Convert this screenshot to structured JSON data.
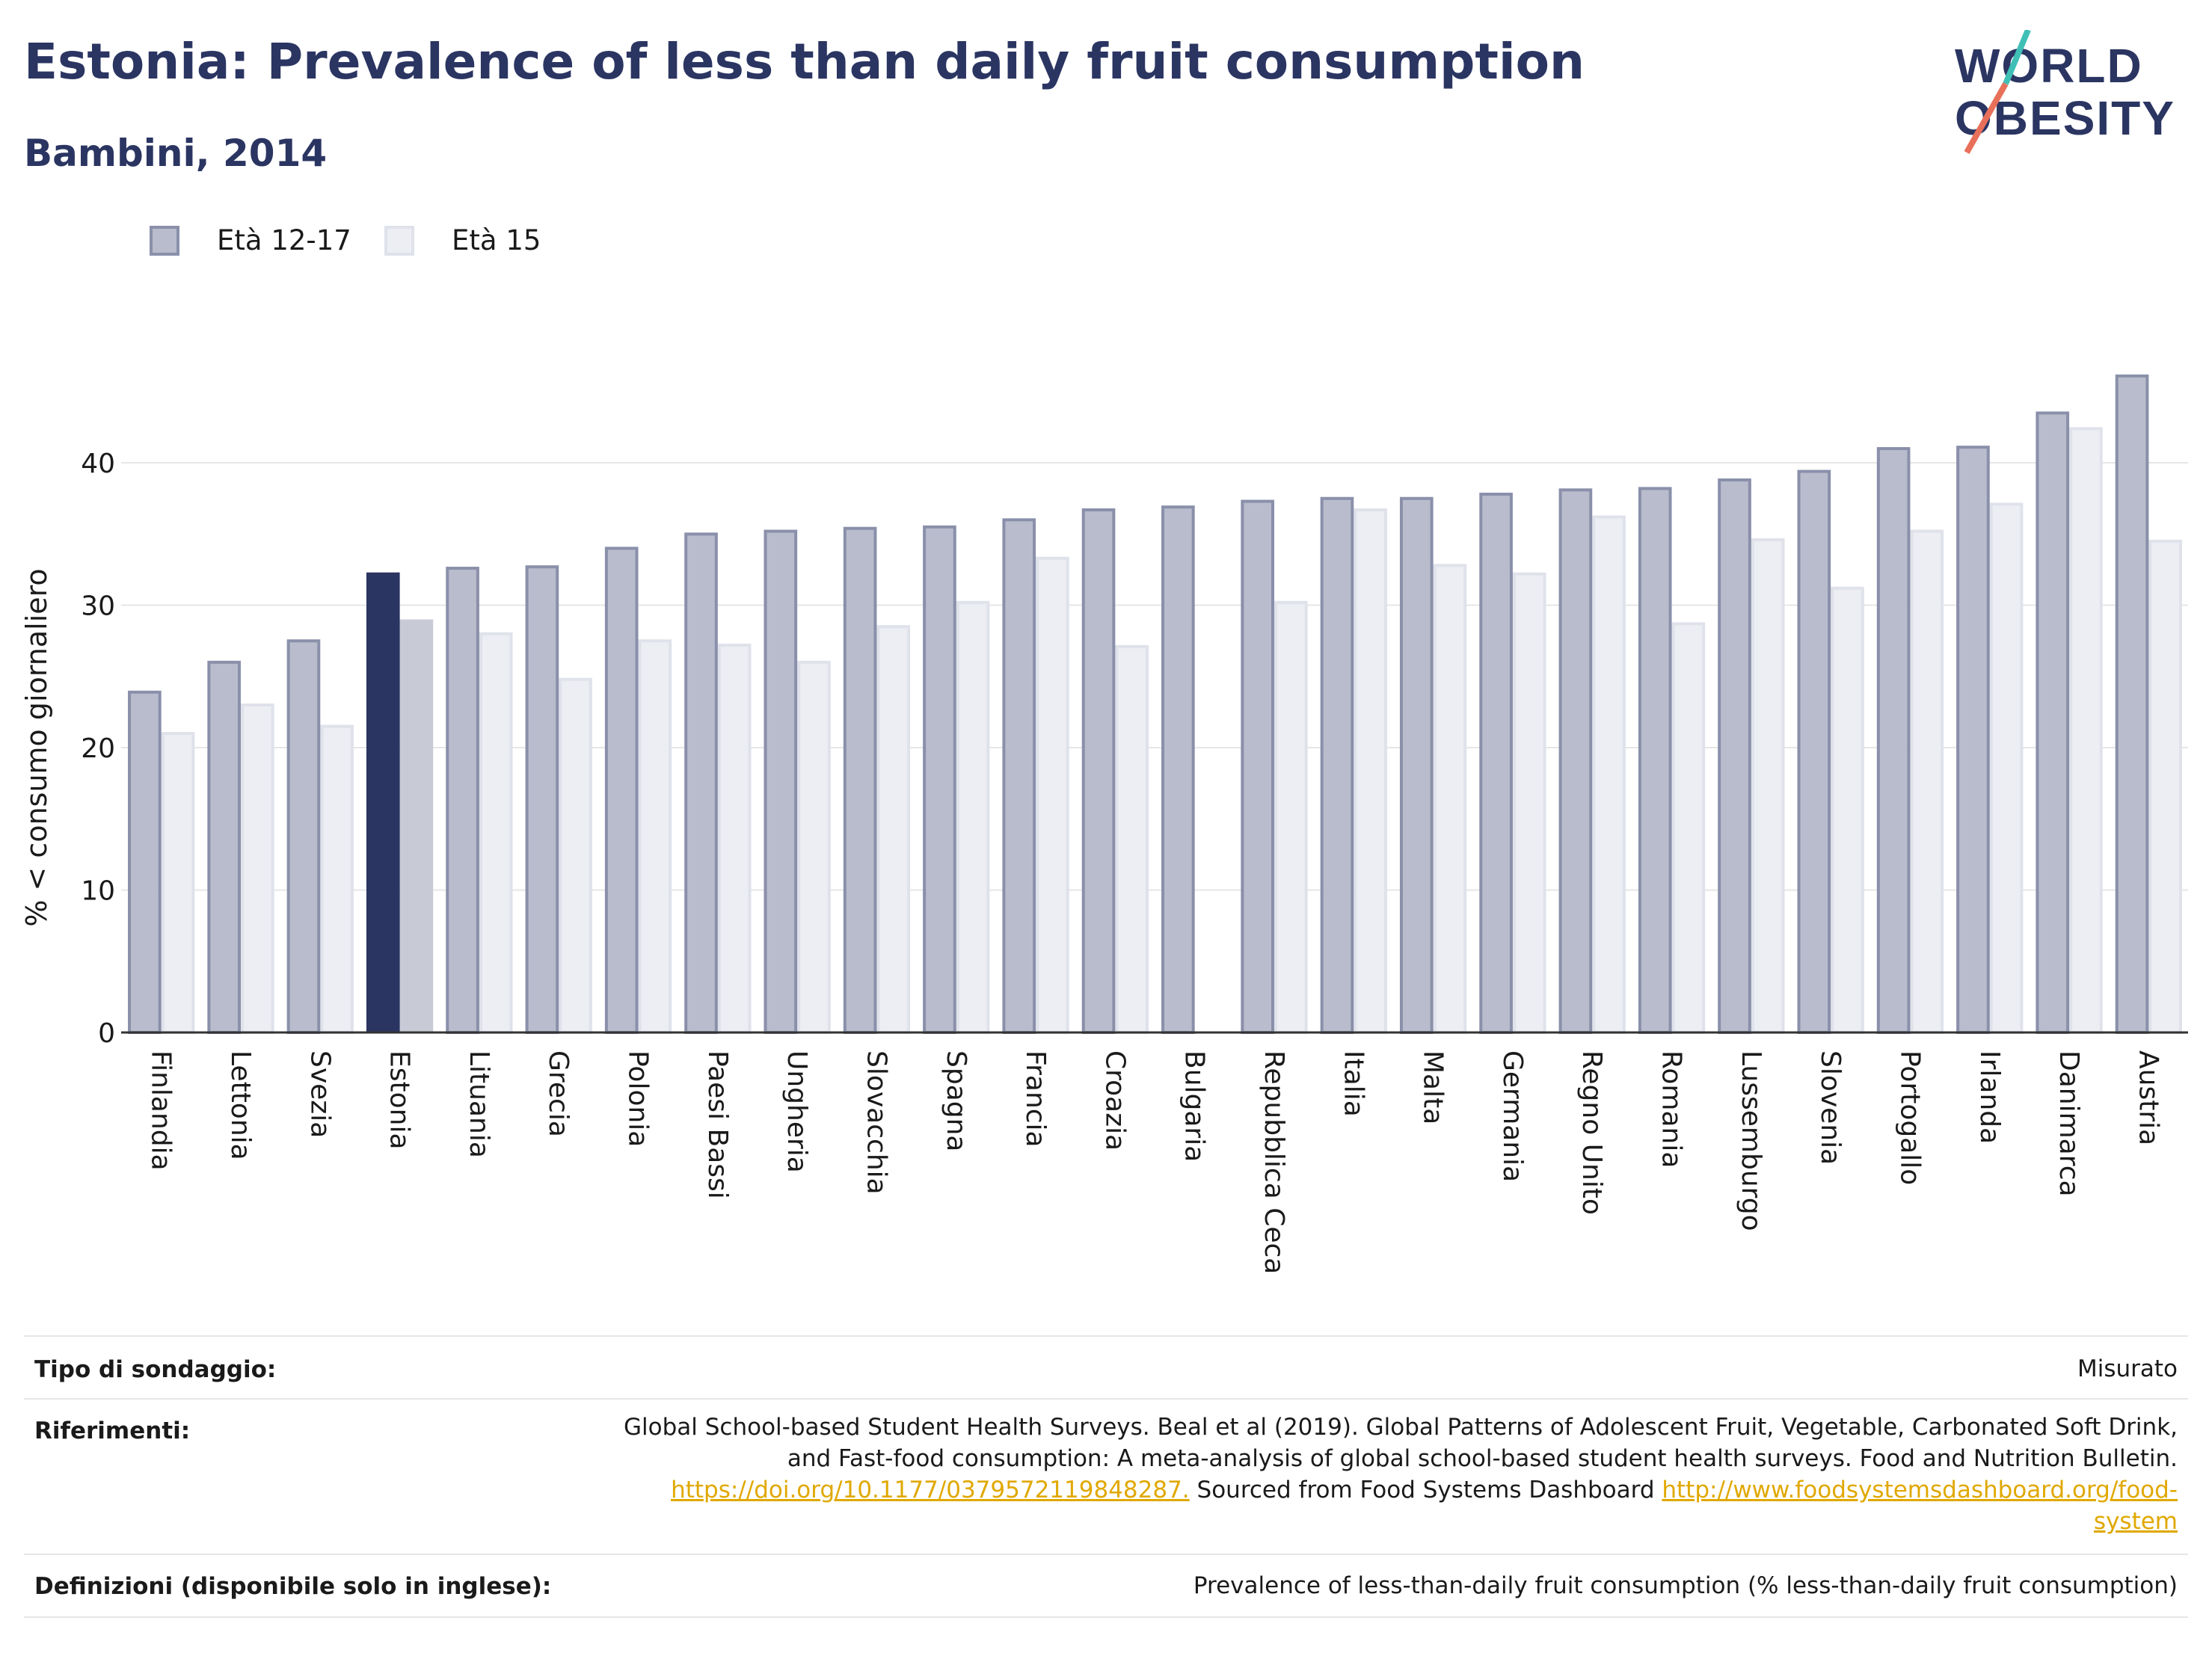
{
  "title": "Estonia: Prevalence of less than daily fruit consumption",
  "subtitle": "Bambini, 2014",
  "logo": {
    "line1": "WORLD",
    "line2": "OBESITY"
  },
  "colors": {
    "title": "#2b3562",
    "series1": "#b9bccc",
    "series1_border": "#8a90aa",
    "series2": "#eceef3",
    "series2_border": "#dfe2ea",
    "highlight1": "#2b3562",
    "highlight2": "#c8cad6",
    "link": "#e0a800",
    "grid": "#e6e6e6"
  },
  "legend": [
    {
      "label": "Età 12-17"
    },
    {
      "label": "Età 15"
    }
  ],
  "chart_data": {
    "type": "bar",
    "ylabel": "% < consumo giornaliero",
    "ylim": [
      0,
      48
    ],
    "yticks": [
      0,
      10,
      20,
      30,
      40
    ],
    "grid": true,
    "legend_position": "top-left",
    "highlight_category": "Estonia",
    "categories": [
      "Finlandia",
      "Lettonia",
      "Svezia",
      "Estonia",
      "Lituania",
      "Grecia",
      "Polonia",
      "Paesi Bassi",
      "Ungheria",
      "Slovacchia",
      "Spagna",
      "Francia",
      "Croazia",
      "Bulgaria",
      "Repubblica Ceca",
      "Italia",
      "Malta",
      "Germania",
      "Regno Unito",
      "Romania",
      "Lussemburgo",
      "Slovenia",
      "Portogallo",
      "Irlanda",
      "Danimarca",
      "Austria"
    ],
    "series": [
      {
        "name": "Età 12-17",
        "values": [
          24,
          26.1,
          27.6,
          32.3,
          32.7,
          32.8,
          34.1,
          35.1,
          35.3,
          35.5,
          35.6,
          36.1,
          36.8,
          37,
          37.4,
          37.6,
          37.6,
          37.9,
          38.2,
          38.3,
          38.9,
          39.5,
          41.1,
          41.2,
          43.6,
          46.2
        ]
      },
      {
        "name": "Età 15",
        "values": [
          21.1,
          23.1,
          21.6,
          29,
          28.1,
          24.9,
          27.6,
          27.3,
          26.1,
          28.6,
          30.3,
          33.4,
          27.2,
          null,
          30.3,
          36.8,
          32.9,
          32.3,
          36.3,
          28.8,
          34.7,
          31.3,
          35.3,
          37.2,
          42.5,
          34.6
        ]
      }
    ]
  },
  "info": {
    "survey_label": "Tipo di sondaggio:",
    "survey_value": "Misurato",
    "refs_label": "Riferimenti:",
    "refs_line1": "Global School-based Student Health Surveys. Beal et al (2019). Global Patterns of Adolescent Fruit, Vegetable, Carbonated Soft Drink,",
    "refs_line2": "and Fast-food consumption: A meta-analysis of global school-based student health surveys. Food and Nutrition Bulletin.",
    "refs_link1": "https://doi.org/10.1177/0379572119848287.",
    "refs_mid": " Sourced from Food Systems Dashboard ",
    "refs_link2a": "http://www.foodsystemsdashboard.org/food-",
    "refs_link2b": "system",
    "defs_label": "Definizioni (disponibile solo in inglese):",
    "defs_value": "Prevalence of less-than-daily fruit consumption (% less-than-daily fruit consumption)"
  }
}
